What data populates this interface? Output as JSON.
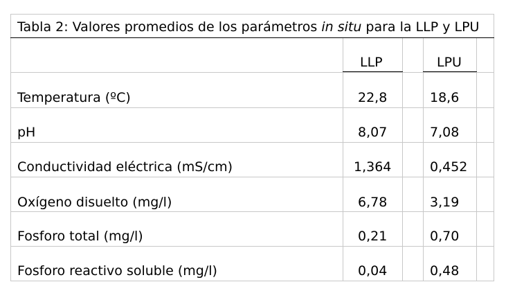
{
  "table": {
    "caption_prefix": "Tabla 2: Valores promedios de los parámetros ",
    "caption_italic": "in situ",
    "caption_suffix": " para la LLP y LPU",
    "columns": [
      "LLP",
      "LPU"
    ],
    "rows": [
      {
        "label": "Temperatura (ºC)",
        "values": [
          "22,8",
          "18,6"
        ]
      },
      {
        "label": "pH",
        "values": [
          "8,07",
          "7,08"
        ]
      },
      {
        "label": "Conductividad eléctrica (mS/cm)",
        "values": [
          "1,364",
          "0,452"
        ]
      },
      {
        "label": "Oxígeno disuelto (mg/l)",
        "values": [
          "6,78",
          "3,19"
        ]
      },
      {
        "label": "Fosforo total (mg/l)",
        "values": [
          "0,21",
          "0,70"
        ]
      },
      {
        "label": "Fosforo reactivo soluble (mg/l)",
        "values": [
          "0,04",
          "0,48"
        ]
      }
    ]
  }
}
